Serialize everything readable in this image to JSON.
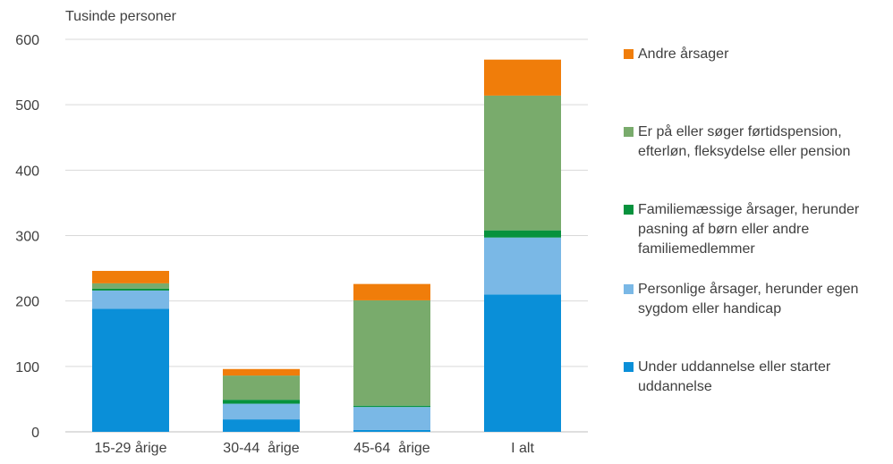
{
  "chart_data": {
    "type": "bar",
    "stacked": true,
    "unit_label": "Tusinde personer",
    "title": "",
    "xlabel": "",
    "ylabel": "",
    "ylim": [
      0,
      600
    ],
    "yticks": [
      0,
      100,
      200,
      300,
      400,
      500,
      600
    ],
    "grid": true,
    "legend_position": "right",
    "categories": [
      "15-29 årige",
      "30-44  årige",
      "45-64  årige",
      "I alt"
    ],
    "series": [
      {
        "name": "Under uddannelse eller starter uddannelse",
        "color": "#0a8fd8",
        "values": [
          188,
          19,
          3,
          210
        ]
      },
      {
        "name": "Personlige årsager, herunder egen sygdom eller handicap",
        "color": "#7ab8e6",
        "values": [
          28,
          24,
          35,
          87
        ]
      },
      {
        "name": "Familiemæssige årsager, herunder pasning af børn eller andre familiemedlemmer",
        "color": "#07923d",
        "values": [
          3,
          6,
          2,
          11
        ]
      },
      {
        "name": "Er på eller søger førtidspension, efterløn, fleksydelse eller pension",
        "color": "#79ab6c",
        "values": [
          8,
          37,
          161,
          206
        ]
      },
      {
        "name": "Andre årsager",
        "color": "#f07d0a",
        "values": [
          19,
          10,
          25,
          55
        ]
      }
    ]
  }
}
